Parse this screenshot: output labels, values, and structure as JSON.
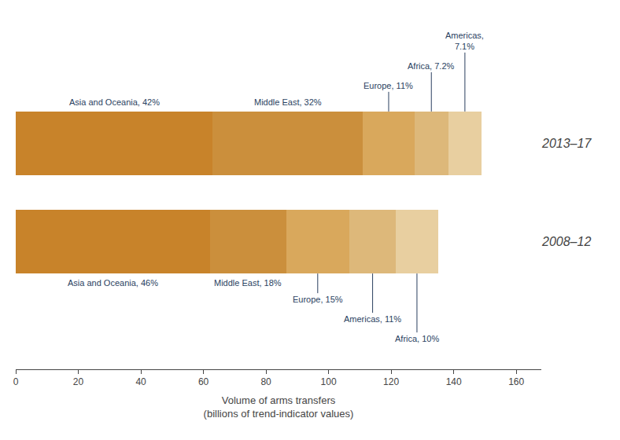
{
  "chart_data": {
    "type": "bar",
    "orientation": "horizontal",
    "stacked": true,
    "categories": [
      "2013–17",
      "2008–12"
    ],
    "series": [
      {
        "color": "#c8832a",
        "values": [
          62.98,
          62.1
        ]
      },
      {
        "color": "#cb8f3c",
        "values": [
          47.98,
          24.3
        ]
      },
      {
        "color": "#d9a85c",
        "values": [
          16.49,
          20.25
        ]
      },
      {
        "color": "#ddb87a",
        "values": [
          10.8,
          14.85
        ]
      },
      {
        "color": "#e8cfa0",
        "values": [
          10.65,
          13.5
        ]
      }
    ],
    "annotations": [
      [
        "Asia and Oceania, 42%",
        "Middle East, 32%",
        "Europe, 11%",
        "Africa, 7.2%",
        "Americas,\n7.1%"
      ],
      [
        "Asia and Oceania, 46%",
        "Middle East, 18%",
        "Europe, 15%",
        "Americas, 11%",
        "Africa, 10%"
      ]
    ],
    "xlabel": "Volume of arms transfers\n(billions of trend-indicator values)",
    "xlim": [
      0,
      168
    ],
    "xticks": [
      0,
      20,
      40,
      60,
      80,
      100,
      120,
      140,
      160
    ],
    "grid": false
  }
}
